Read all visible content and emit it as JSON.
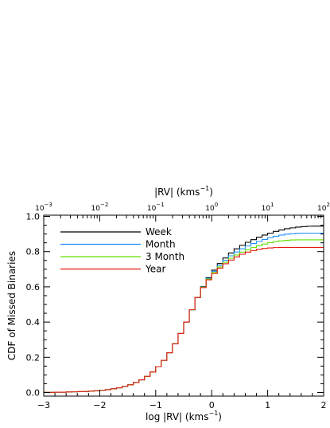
{
  "chart_data": {
    "type": "line",
    "title": "",
    "xlabel": "log |RV| (kms",
    "xlabel_sup": "−1",
    "xlabel_close": ")",
    "x2label": "|RV| (kms",
    "x2label_sup": "−1",
    "x2label_close": ")",
    "ylabel": "CDF of Missed Binaries",
    "xlim": [
      -3,
      2
    ],
    "ylim": [
      0,
      1
    ],
    "x_ticks": [
      "−3",
      "−2",
      "−1",
      "0",
      "1",
      "2"
    ],
    "y_ticks": [
      "0.0",
      "0.2",
      "0.4",
      "0.6",
      "0.8",
      "1.0"
    ],
    "x2_ticks": [
      {
        "base": "10",
        "exp": "−3"
      },
      {
        "base": "10",
        "exp": "−2"
      },
      {
        "base": "10",
        "exp": "−1"
      },
      {
        "base": "10",
        "exp": "0"
      },
      {
        "base": "10",
        "exp": "1"
      },
      {
        "base": "10",
        "exp": "2"
      }
    ],
    "grid": false,
    "legend_position": "top-left",
    "step_width": 0.1,
    "x_start": -3.0,
    "series": [
      {
        "name": "Week",
        "color": "#000000",
        "values": [
          0.001,
          0.001,
          0.002,
          0.002,
          0.003,
          0.004,
          0.005,
          0.006,
          0.008,
          0.01,
          0.013,
          0.016,
          0.021,
          0.027,
          0.035,
          0.044,
          0.057,
          0.072,
          0.092,
          0.117,
          0.147,
          0.183,
          0.226,
          0.277,
          0.335,
          0.4,
          0.47,
          0.54,
          0.602,
          0.652,
          0.695,
          0.732,
          0.764,
          0.792,
          0.816,
          0.836,
          0.853,
          0.868,
          0.882,
          0.894,
          0.905,
          0.915,
          0.923,
          0.93,
          0.935,
          0.939,
          0.942,
          0.944,
          0.945,
          0.945
        ]
      },
      {
        "name": "Month",
        "color": "#1E90FF",
        "values": [
          0.001,
          0.001,
          0.002,
          0.002,
          0.003,
          0.004,
          0.005,
          0.006,
          0.008,
          0.01,
          0.013,
          0.016,
          0.021,
          0.027,
          0.035,
          0.044,
          0.057,
          0.072,
          0.092,
          0.117,
          0.147,
          0.183,
          0.226,
          0.277,
          0.335,
          0.4,
          0.47,
          0.54,
          0.6,
          0.648,
          0.688,
          0.722,
          0.751,
          0.776,
          0.798,
          0.816,
          0.832,
          0.846,
          0.858,
          0.869,
          0.879,
          0.887,
          0.894,
          0.899,
          0.902,
          0.904,
          0.905,
          0.905,
          0.905,
          0.905
        ]
      },
      {
        "name": "3 Month",
        "color": "#66E000",
        "values": [
          0.001,
          0.001,
          0.002,
          0.002,
          0.003,
          0.004,
          0.005,
          0.006,
          0.008,
          0.01,
          0.013,
          0.016,
          0.021,
          0.027,
          0.035,
          0.044,
          0.057,
          0.072,
          0.092,
          0.117,
          0.147,
          0.183,
          0.226,
          0.277,
          0.335,
          0.4,
          0.47,
          0.54,
          0.598,
          0.644,
          0.682,
          0.713,
          0.739,
          0.762,
          0.781,
          0.797,
          0.811,
          0.823,
          0.834,
          0.843,
          0.851,
          0.857,
          0.861,
          0.864,
          0.866,
          0.867,
          0.867,
          0.867,
          0.867,
          0.867
        ]
      },
      {
        "name": "Year",
        "color": "#E8180C",
        "values": [
          0.001,
          0.001,
          0.002,
          0.002,
          0.003,
          0.004,
          0.005,
          0.006,
          0.008,
          0.01,
          0.013,
          0.016,
          0.021,
          0.027,
          0.035,
          0.044,
          0.057,
          0.072,
          0.092,
          0.117,
          0.147,
          0.183,
          0.226,
          0.277,
          0.335,
          0.4,
          0.47,
          0.54,
          0.596,
          0.64,
          0.676,
          0.706,
          0.731,
          0.752,
          0.77,
          0.785,
          0.797,
          0.806,
          0.813,
          0.818,
          0.821,
          0.823,
          0.824,
          0.824,
          0.824,
          0.824,
          0.824,
          0.824,
          0.824,
          0.824
        ]
      }
    ]
  }
}
